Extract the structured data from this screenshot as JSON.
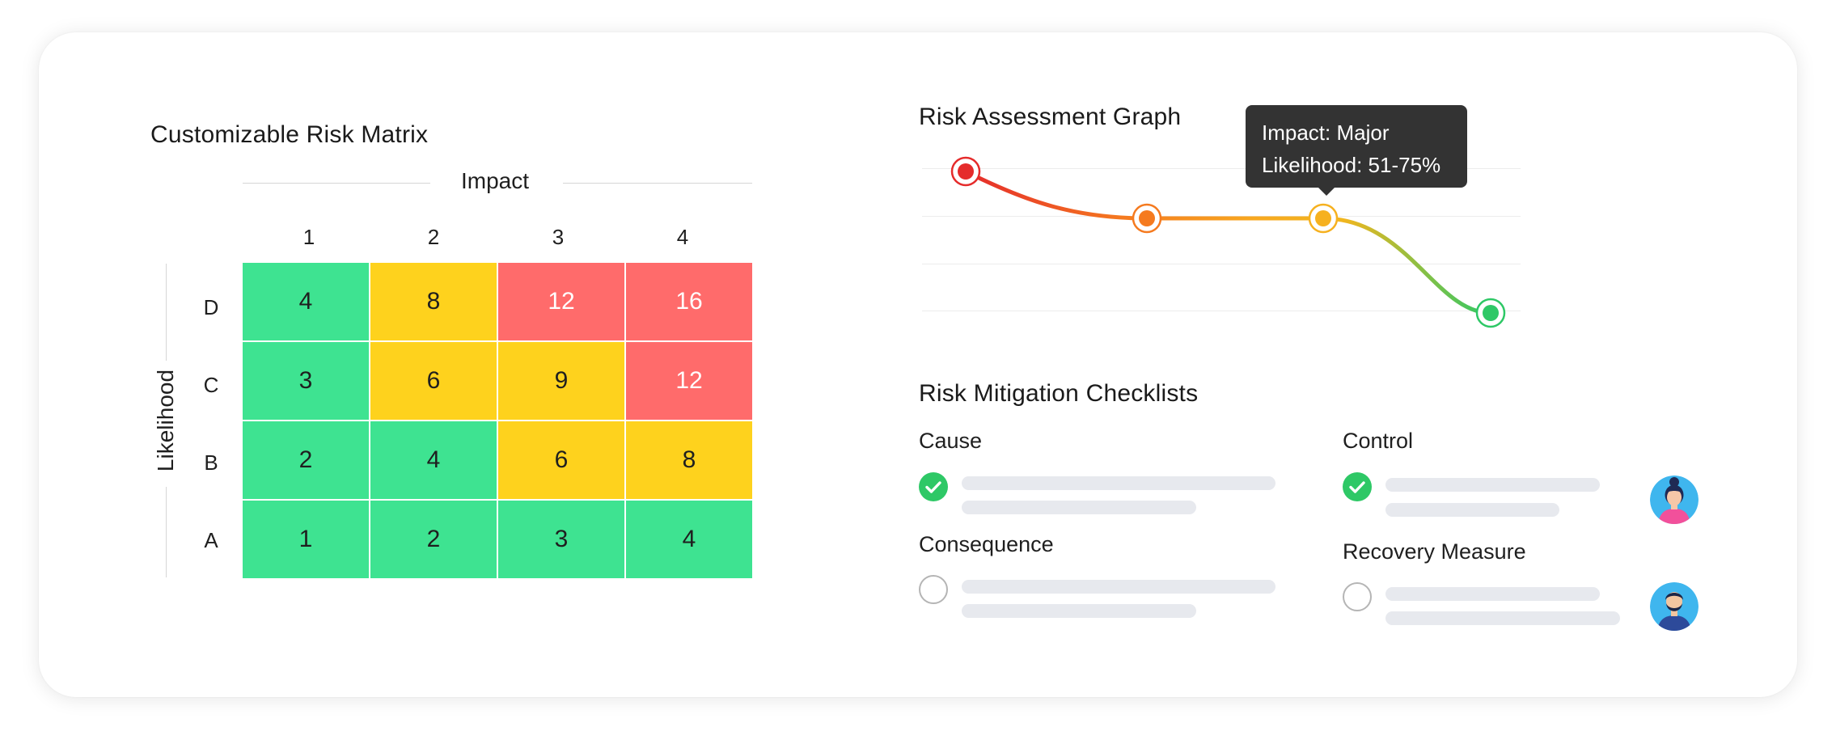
{
  "matrix": {
    "title": "Customizable Risk Matrix",
    "x_axis_label": "Impact",
    "y_axis_label": "Likelihood",
    "columns": [
      "1",
      "2",
      "3",
      "4"
    ],
    "rows": [
      {
        "letter": "D",
        "values": [
          "4",
          "8",
          "12",
          "16"
        ],
        "colors": [
          "#3ee391",
          "#fed21d",
          "#ff6b6b",
          "#ff6b6b"
        ]
      },
      {
        "letter": "C",
        "values": [
          "3",
          "6",
          "9",
          "12"
        ],
        "colors": [
          "#3ee391",
          "#fed21d",
          "#fed21d",
          "#ff6b6b"
        ]
      },
      {
        "letter": "B",
        "values": [
          "2",
          "4",
          "6",
          "8"
        ],
        "colors": [
          "#3ee391",
          "#3ee391",
          "#fed21d",
          "#fed21d"
        ]
      },
      {
        "letter": "A",
        "values": [
          "1",
          "2",
          "3",
          "4"
        ],
        "colors": [
          "#3ee391",
          "#3ee391",
          "#3ee391",
          "#3ee391"
        ]
      }
    ],
    "palette": {
      "green": "#3ee391",
      "yellow": "#fed21d",
      "red": "#ff6b6b"
    }
  },
  "graph": {
    "title": "Risk Assessment Graph",
    "tooltip": {
      "impact": "Impact: Major",
      "likelihood": "Likelihood: 51-75%"
    },
    "point_colors": [
      "#e52b2b",
      "#f57a1f",
      "#f6b11f",
      "#2ec866"
    ]
  },
  "checklists": {
    "title": "Risk Mitigation Checklists",
    "cause": {
      "label": "Cause",
      "checked": true
    },
    "consequence": {
      "label": "Consequence",
      "checked": false
    },
    "control": {
      "label": "Control",
      "checked": true
    },
    "recovery": {
      "label": "Recovery Measure",
      "checked": false
    },
    "check_color": "#2ec866",
    "avatars": [
      "woman-avatar",
      "man-avatar"
    ]
  }
}
